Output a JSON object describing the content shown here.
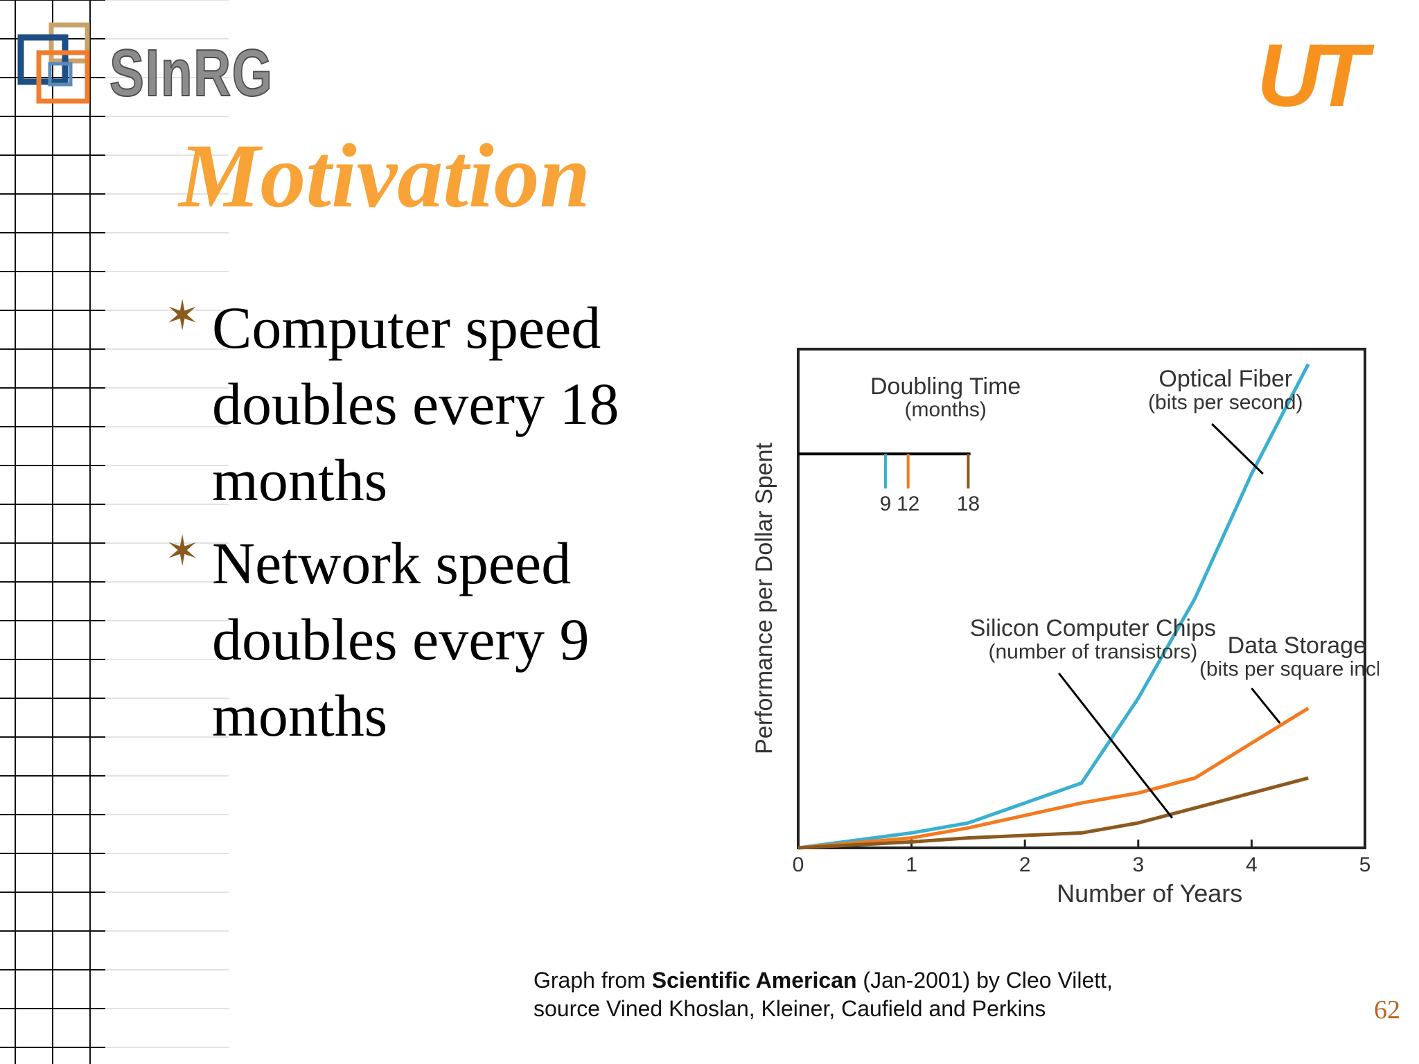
{
  "header": {
    "logo_text": "SInRG",
    "ut_logo": "UT"
  },
  "slide": {
    "title": "Motivation",
    "bullets": [
      {
        "text": "Computer speed doubles every 18 months"
      },
      {
        "text": "Network speed doubles every 9 months"
      }
    ],
    "caption_line1_prefix": "Graph from ",
    "caption_line1_bold": "Scientific American",
    "caption_line1_suffix": " (Jan-2001) by Cleo Vilett,",
    "caption_line2": "source Vined Khoslan, Kleiner, Caufield and Perkins",
    "page_number": "62"
  },
  "colors": {
    "title": "#f7a338",
    "ut_orange": "#f7921e",
    "star": "#8b5a1e",
    "optical": "#3ab0d0",
    "storage": "#f47a20",
    "silicon": "#8b5a1e"
  },
  "chart_data": {
    "type": "line",
    "title": "",
    "xlabel": "Number of Years",
    "ylabel": "Performance per Dollar Spent",
    "xlim": [
      0,
      5
    ],
    "ylim": [
      0,
      100
    ],
    "x_ticks": [
      "0",
      "1",
      "2",
      "3",
      "4",
      "5"
    ],
    "grid": false,
    "series": [
      {
        "name": "Optical Fiber",
        "subtitle": "(bits per second)",
        "color": "#3ab0d0",
        "points": [
          [
            0,
            0
          ],
          [
            1,
            3
          ],
          [
            1.5,
            5
          ],
          [
            2.5,
            13
          ],
          [
            3,
            30
          ],
          [
            3.5,
            50
          ],
          [
            4,
            75
          ],
          [
            4.5,
            97
          ]
        ]
      },
      {
        "name": "Data Storage",
        "subtitle": "(bits per square inch)",
        "color": "#f47a20",
        "points": [
          [
            0,
            0
          ],
          [
            1,
            2
          ],
          [
            1.5,
            4
          ],
          [
            2.5,
            9
          ],
          [
            3,
            11
          ],
          [
            3.5,
            14
          ],
          [
            4,
            21
          ],
          [
            4.5,
            28
          ]
        ]
      },
      {
        "name": "Silicon Computer Chips",
        "subtitle": "(number of transistors)",
        "color": "#8b5a1e",
        "points": [
          [
            0,
            0
          ],
          [
            1,
            1.2
          ],
          [
            1.5,
            2
          ],
          [
            2.5,
            3
          ],
          [
            3,
            5
          ],
          [
            3.5,
            8
          ],
          [
            4,
            11
          ],
          [
            4.5,
            14
          ]
        ]
      }
    ],
    "inset_legend": {
      "title": "Doubling Time",
      "subtitle": "(months)",
      "labels": [
        "9",
        "12",
        "18"
      ],
      "colors": [
        "#3ab0d0",
        "#f47a20",
        "#8b5a1e"
      ]
    }
  }
}
